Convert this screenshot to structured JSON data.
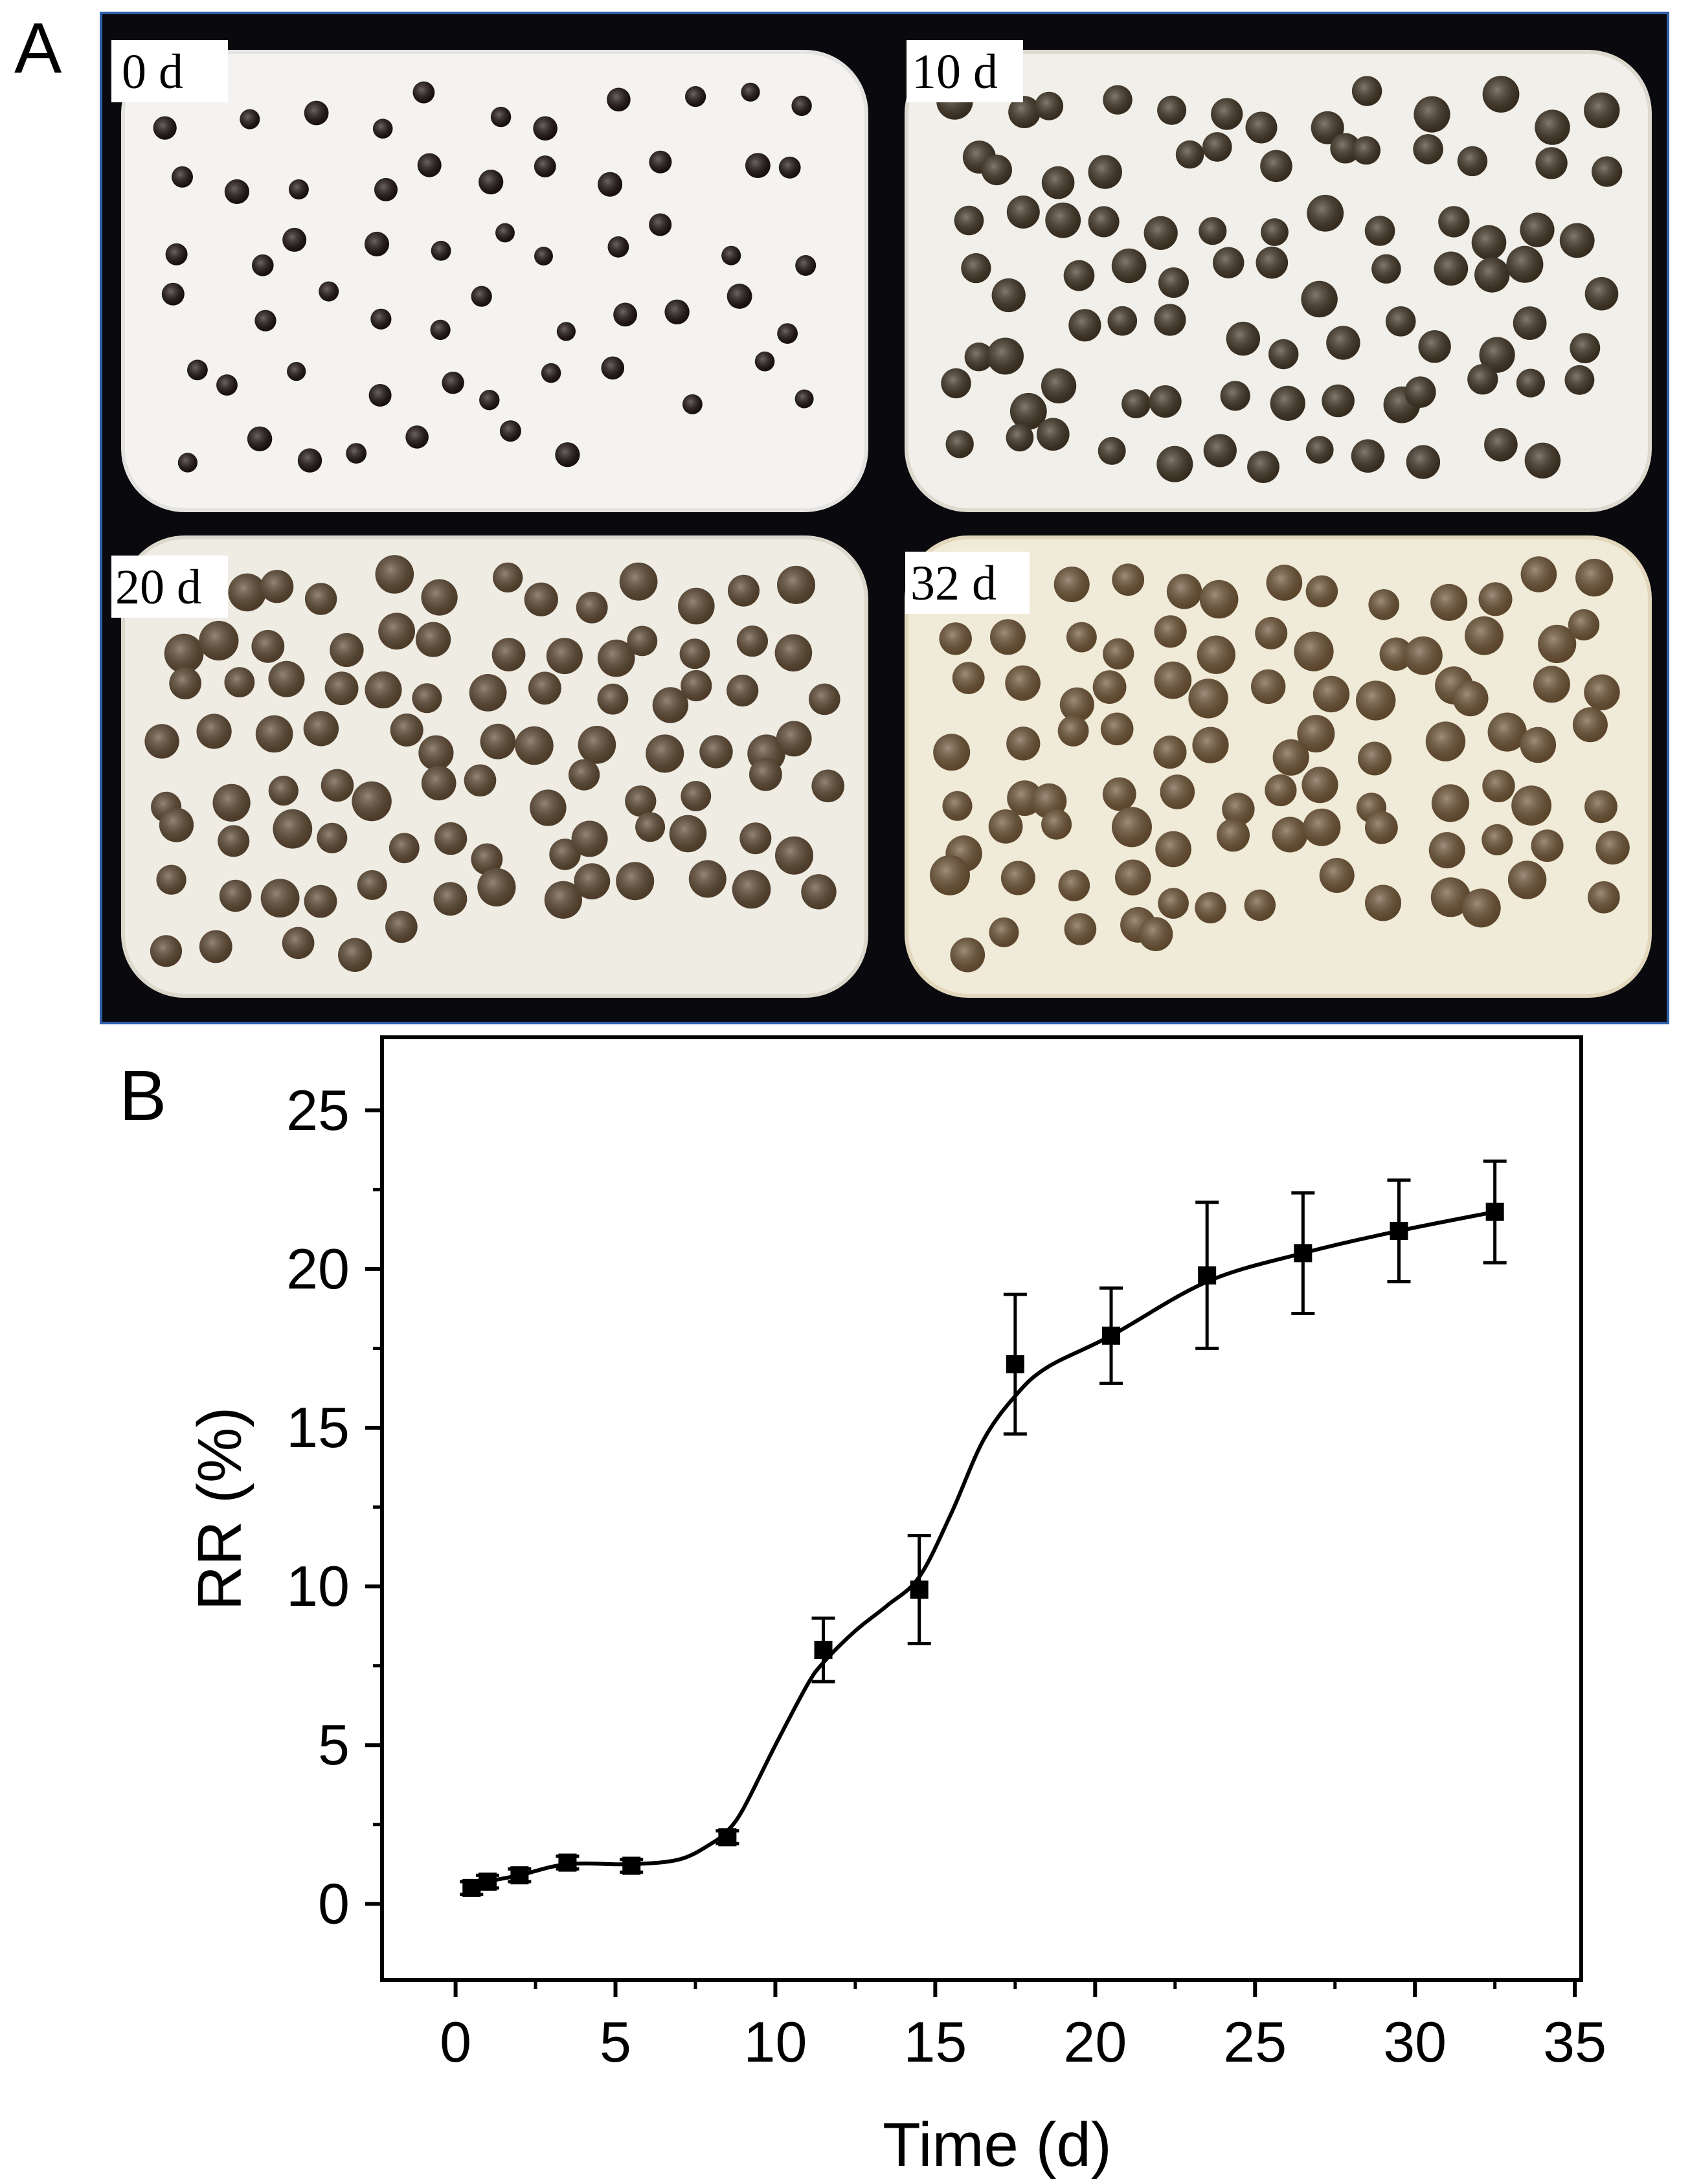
{
  "panel_a": {
    "letter": "A",
    "trays": [
      {
        "label": "0 d",
        "bead_color": "#1c1210",
        "sand_tint": "#f4f3f1",
        "edge_tint": "#e4e3e0"
      },
      {
        "label": "10 d",
        "bead_color": "#3f3324",
        "sand_tint": "#f1efe9",
        "edge_tint": "#ddd9cf"
      },
      {
        "label": "20 d",
        "bead_color": "#5a4630",
        "sand_tint": "#efece4",
        "edge_tint": "#dcd8cc"
      },
      {
        "label": "32 d",
        "bead_color": "#6b5234",
        "sand_tint": "#f0ead8",
        "edge_tint": "#e2d7bc"
      }
    ]
  },
  "chart_data": {
    "type": "scatter",
    "panel_letter": "B",
    "xlabel": "Time (d)",
    "ylabel": "RR (%)",
    "xlim": [
      -2.3,
      35.2
    ],
    "ylim": [
      -2.4,
      27.3
    ],
    "xticks": [
      0,
      5,
      10,
      15,
      20,
      25,
      30,
      35
    ],
    "yticks": [
      0,
      5,
      10,
      15,
      20,
      25
    ],
    "grid": false,
    "legend": "none",
    "marker": "square",
    "series": [
      {
        "points": [
          {
            "x": 0.5,
            "y": 0.5,
            "err": 0.2
          },
          {
            "x": 1.0,
            "y": 0.7,
            "err": 0.2
          },
          {
            "x": 2.0,
            "y": 0.9,
            "err": 0.2
          },
          {
            "x": 3.5,
            "y": 1.3,
            "err": 0.2
          },
          {
            "x": 5.5,
            "y": 1.2,
            "err": 0.2
          },
          {
            "x": 8.5,
            "y": 2.1,
            "err": 0.2
          },
          {
            "x": 11.5,
            "y": 8.0,
            "err": 1.0
          },
          {
            "x": 14.5,
            "y": 9.9,
            "err": 1.7
          },
          {
            "x": 17.5,
            "y": 17.0,
            "err": 2.2
          },
          {
            "x": 20.5,
            "y": 17.9,
            "err": 1.5
          },
          {
            "x": 23.5,
            "y": 19.8,
            "err": 2.3
          },
          {
            "x": 26.5,
            "y": 20.5,
            "err": 1.9
          },
          {
            "x": 29.5,
            "y": 21.2,
            "err": 1.6
          },
          {
            "x": 32.5,
            "y": 21.8,
            "err": 1.6
          }
        ],
        "fit_curve": [
          [
            0.5,
            0.5
          ],
          [
            1.0,
            0.7
          ],
          [
            2.0,
            0.9
          ],
          [
            3.5,
            1.25
          ],
          [
            5.5,
            1.25
          ],
          [
            7.0,
            1.4
          ],
          [
            8.0,
            1.9
          ],
          [
            8.5,
            2.3
          ],
          [
            9.0,
            3.0
          ],
          [
            10.0,
            5.0
          ],
          [
            11.0,
            6.9
          ],
          [
            11.5,
            7.6
          ],
          [
            12.5,
            8.6
          ],
          [
            13.5,
            9.4
          ],
          [
            14.5,
            10.3
          ],
          [
            15.5,
            12.3
          ],
          [
            16.5,
            14.6
          ],
          [
            17.5,
            16.0
          ],
          [
            18.5,
            16.9
          ],
          [
            20.5,
            17.9
          ],
          [
            23.5,
            19.6
          ],
          [
            26.5,
            20.5
          ],
          [
            29.5,
            21.2
          ],
          [
            32.5,
            21.8
          ]
        ]
      }
    ]
  }
}
